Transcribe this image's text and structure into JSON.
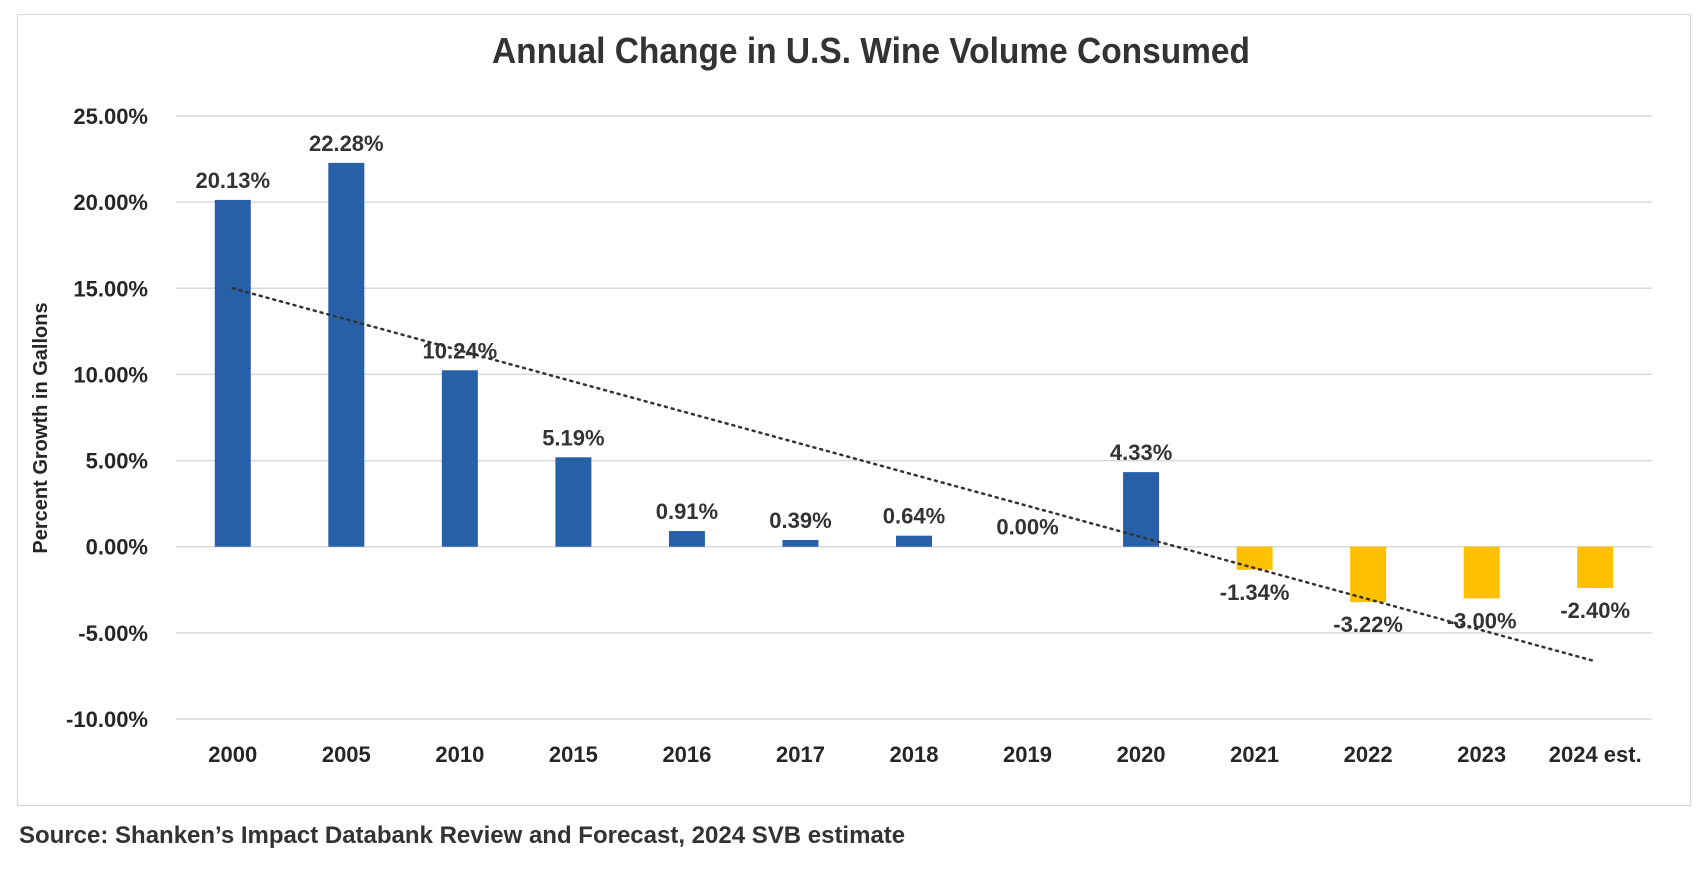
{
  "source_note": "Source: Shanken’s Impact Databank Review and Forecast, 2024 SVB estimate",
  "chart_data": {
    "type": "bar",
    "title": "Annual Change in U.S. Wine Volume Consumed",
    "xlabel": "",
    "ylabel": "Percent Growth in Gallons",
    "categories": [
      "2000",
      "2005",
      "2010",
      "2015",
      "2016",
      "2017",
      "2018",
      "2019",
      "2020",
      "2021",
      "2022",
      "2023",
      "2024 est."
    ],
    "series": [
      {
        "values": [
          20.13,
          22.28,
          10.24,
          5.19,
          0.91,
          0.39,
          0.64,
          0.0,
          4.33,
          -1.34,
          -3.22,
          -3.0,
          -2.4
        ],
        "labels": [
          "20.13%",
          "22.28%",
          "10.24%",
          "5.19%",
          "0.91%",
          "0.39%",
          "0.64%",
          "0.00%",
          "4.33%",
          "-1.34%",
          "-3.22%",
          "-3.00%",
          "-2.40%"
        ]
      }
    ],
    "bar_colors": {
      "positive": "#2860A8",
      "negative": "#FFC000"
    },
    "ylim": [
      -10,
      25
    ],
    "yticks": [
      25,
      20,
      15,
      10,
      5,
      0,
      -5,
      -10
    ],
    "ytick_labels": [
      "25.00%",
      "20.00%",
      "15.00%",
      "10.00%",
      "5.00%",
      "0.00%",
      "-5.00%",
      "-10.00%"
    ],
    "grid": true,
    "legend": "none",
    "trendline": {
      "type": "linear",
      "style": "dotted",
      "color": "#333333",
      "start": 15.0,
      "end": -6.65
    }
  }
}
